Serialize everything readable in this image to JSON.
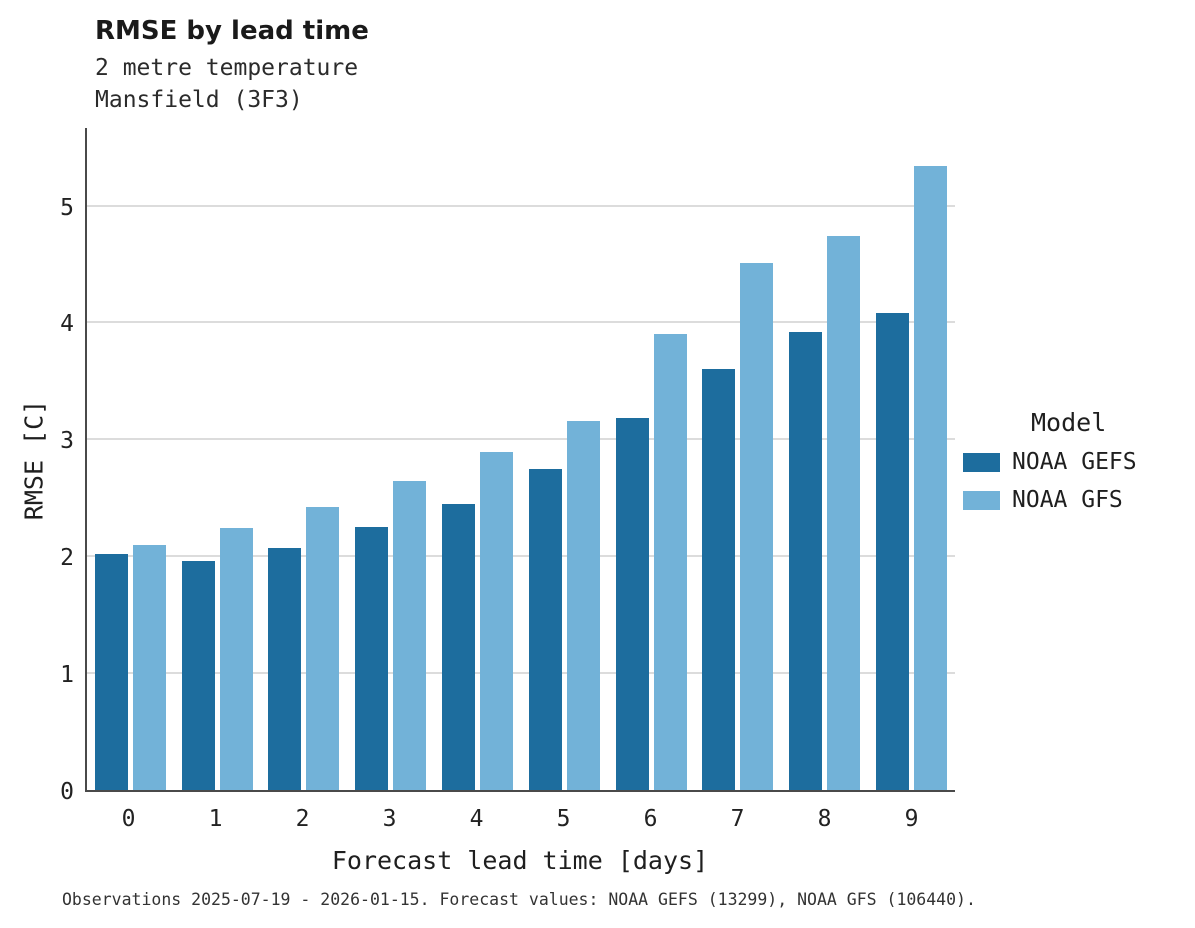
{
  "header": {
    "title": "RMSE by lead time",
    "subtitle_line1": "2 metre temperature",
    "subtitle_line2": "Mansfield (3F3)"
  },
  "legend": {
    "title": "Model",
    "entries": [
      {
        "label": "NOAA GEFS",
        "color": "#1d6d9e"
      },
      {
        "label": "NOAA GFS",
        "color": "#72b2d8"
      }
    ]
  },
  "footnote": "Observations 2025-07-19 - 2026-01-15. Forecast values: NOAA GEFS (13299), NOAA GFS (106440).",
  "chart_data": {
    "type": "bar",
    "title": "RMSE by lead time",
    "subtitle": [
      "2 metre temperature",
      "Mansfield (3F3)"
    ],
    "xlabel": "Forecast lead time [days]",
    "ylabel": "RMSE [C]",
    "categories": [
      "0",
      "1",
      "2",
      "3",
      "4",
      "5",
      "6",
      "7",
      "8",
      "9"
    ],
    "series": [
      {
        "name": "NOAA GEFS",
        "color": "#1d6d9e",
        "values": [
          2.02,
          1.96,
          2.07,
          2.25,
          2.45,
          2.75,
          3.18,
          3.6,
          3.92,
          4.08
        ]
      },
      {
        "name": "NOAA GFS",
        "color": "#72b2d8",
        "values": [
          2.1,
          2.24,
          2.42,
          2.64,
          2.89,
          3.16,
          3.9,
          4.51,
          4.74,
          5.34
        ]
      }
    ],
    "yticks": [
      0,
      1,
      2,
      3,
      4,
      5
    ],
    "ylim": [
      0,
      5.68
    ],
    "grid": true,
    "legend_position": "right",
    "legend_title": "Model"
  }
}
